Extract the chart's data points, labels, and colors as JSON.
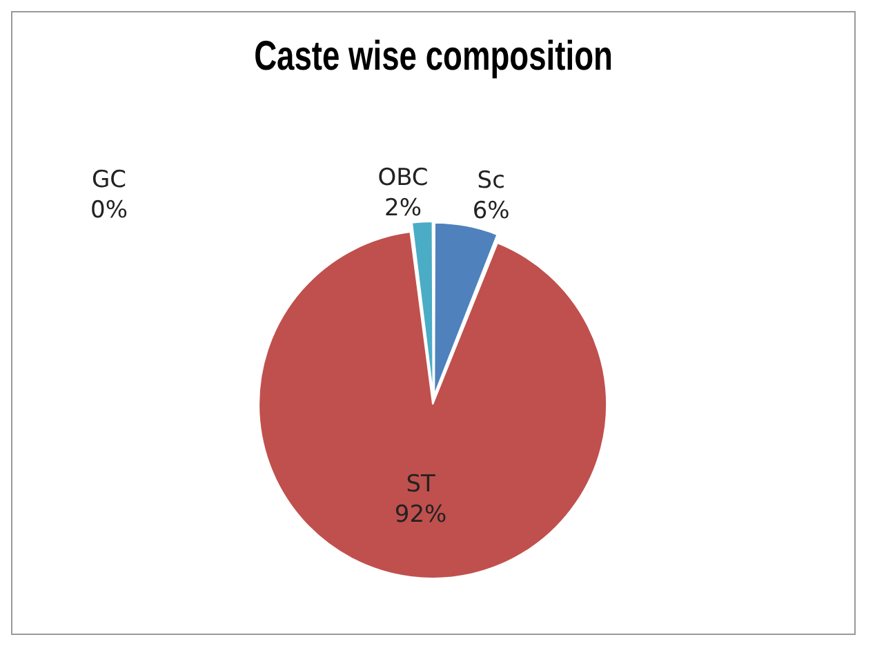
{
  "chart_data": {
    "type": "pie",
    "title": "Caste wise composition",
    "categories": [
      "Sc",
      "ST",
      "GC",
      "OBC"
    ],
    "values": [
      6,
      92,
      0,
      2
    ],
    "colors": [
      "#4f81bd",
      "#c0504d",
      "#8064a2",
      "#4bacc6"
    ],
    "value_labels": [
      "6%",
      "92%",
      "0%",
      "2%"
    ],
    "legend": false
  }
}
